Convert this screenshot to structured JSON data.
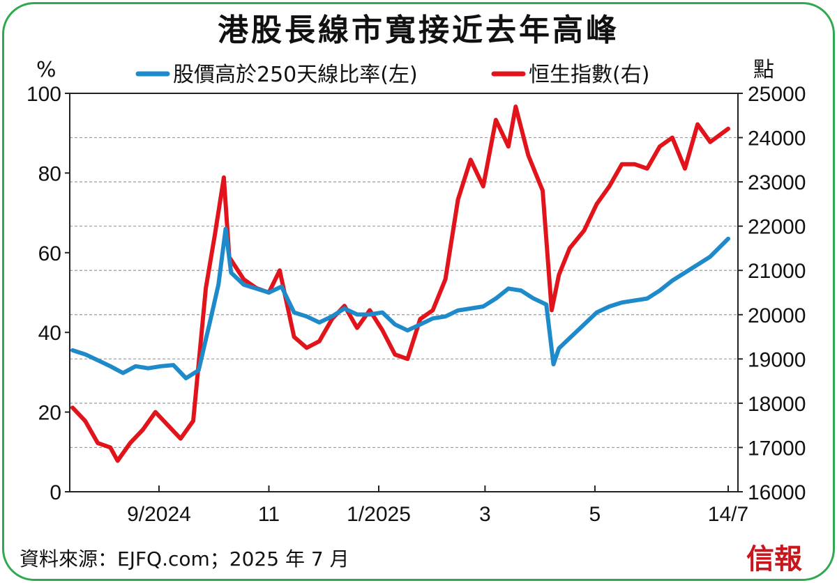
{
  "title": "港股長線市寬接近去年高峰",
  "left_unit": "%",
  "right_unit": "點",
  "source": "資料來源：EJFQ.com；2025 年 7 月",
  "logo": "信報",
  "colors": {
    "frame": "#2fa84f",
    "breadth": "#1f8ac9",
    "hsi": "#e1141b",
    "grid": "#9a9a9a"
  },
  "chart_data": {
    "type": "line",
    "title": "港股長線市寬接近去年高峰",
    "xlabel": "",
    "ylabel_left": "%",
    "ylabel_right": "點",
    "grid": true,
    "legend_position": "top",
    "x_range": [
      "2024-07-15",
      "2025-07-14"
    ],
    "x_ticks": [
      {
        "date": "2024-09-01",
        "label": "9/2024"
      },
      {
        "date": "2024-11-01",
        "label": "11"
      },
      {
        "date": "2025-01-01",
        "label": "1/2025"
      },
      {
        "date": "2025-03-01",
        "label": "3"
      },
      {
        "date": "2025-05-01",
        "label": "5"
      },
      {
        "date": "2025-07-14",
        "label": "14/7"
      }
    ],
    "y_left": {
      "range": [
        0,
        100
      ],
      "ticks": [
        0,
        20,
        40,
        60,
        80,
        100
      ]
    },
    "y_right": {
      "range": [
        16000,
        25000
      ],
      "ticks": [
        16000,
        17000,
        18000,
        19000,
        20000,
        21000,
        22000,
        23000,
        24000,
        25000
      ]
    },
    "series": [
      {
        "name": "股價高於250天線比率(左)",
        "axis": "left",
        "points": [
          [
            "2024-07-15",
            35.5
          ],
          [
            "2024-07-22",
            34.5
          ],
          [
            "2024-07-29",
            33.0
          ],
          [
            "2024-08-05",
            31.5
          ],
          [
            "2024-08-12",
            29.8
          ],
          [
            "2024-08-19",
            31.5
          ],
          [
            "2024-08-26",
            31.0
          ],
          [
            "2024-09-02",
            31.5
          ],
          [
            "2024-09-09",
            31.8
          ],
          [
            "2024-09-16",
            28.5
          ],
          [
            "2024-09-23",
            30.5
          ],
          [
            "2024-09-30",
            44.0
          ],
          [
            "2024-10-04",
            52.0
          ],
          [
            "2024-10-08",
            66.0
          ],
          [
            "2024-10-11",
            55.0
          ],
          [
            "2024-10-18",
            52.0
          ],
          [
            "2024-10-25",
            51.0
          ],
          [
            "2024-11-01",
            50.0
          ],
          [
            "2024-11-08",
            51.5
          ],
          [
            "2024-11-15",
            45.0
          ],
          [
            "2024-11-22",
            44.0
          ],
          [
            "2024-11-29",
            42.5
          ],
          [
            "2024-12-06",
            44.0
          ],
          [
            "2024-12-13",
            46.0
          ],
          [
            "2024-12-20",
            44.5
          ],
          [
            "2024-12-27",
            44.5
          ],
          [
            "2025-01-03",
            45.0
          ],
          [
            "2025-01-10",
            42.0
          ],
          [
            "2025-01-17",
            40.5
          ],
          [
            "2025-01-24",
            42.0
          ],
          [
            "2025-01-31",
            43.5
          ],
          [
            "2025-02-07",
            44.0
          ],
          [
            "2025-02-14",
            45.5
          ],
          [
            "2025-02-21",
            46.0
          ],
          [
            "2025-02-28",
            46.5
          ],
          [
            "2025-03-07",
            48.5
          ],
          [
            "2025-03-14",
            51.0
          ],
          [
            "2025-03-21",
            50.5
          ],
          [
            "2025-03-28",
            48.5
          ],
          [
            "2025-04-04",
            47.0
          ],
          [
            "2025-04-08",
            32.0
          ],
          [
            "2025-04-11",
            36.0
          ],
          [
            "2025-04-18",
            39.0
          ],
          [
            "2025-04-25",
            42.0
          ],
          [
            "2025-05-02",
            45.0
          ],
          [
            "2025-05-09",
            46.5
          ],
          [
            "2025-05-16",
            47.5
          ],
          [
            "2025-05-23",
            48.0
          ],
          [
            "2025-05-30",
            48.5
          ],
          [
            "2025-06-06",
            50.5
          ],
          [
            "2025-06-13",
            53.0
          ],
          [
            "2025-06-20",
            55.0
          ],
          [
            "2025-06-27",
            57.0
          ],
          [
            "2025-07-04",
            59.0
          ],
          [
            "2025-07-14",
            63.5
          ]
        ]
      },
      {
        "name": "恒生指數(右)",
        "axis": "right",
        "points": [
          [
            "2024-07-15",
            17900
          ],
          [
            "2024-07-22",
            17600
          ],
          [
            "2024-07-29",
            17100
          ],
          [
            "2024-08-05",
            17000
          ],
          [
            "2024-08-09",
            16700
          ],
          [
            "2024-08-16",
            17100
          ],
          [
            "2024-08-23",
            17400
          ],
          [
            "2024-08-30",
            17800
          ],
          [
            "2024-09-06",
            17500
          ],
          [
            "2024-09-13",
            17200
          ],
          [
            "2024-09-20",
            17600
          ],
          [
            "2024-09-27",
            20600
          ],
          [
            "2024-10-02",
            21800
          ],
          [
            "2024-10-07",
            23100
          ],
          [
            "2024-10-10",
            21300
          ],
          [
            "2024-10-18",
            20800
          ],
          [
            "2024-10-25",
            20600
          ],
          [
            "2024-11-01",
            20500
          ],
          [
            "2024-11-07",
            21000
          ],
          [
            "2024-11-15",
            19500
          ],
          [
            "2024-11-22",
            19250
          ],
          [
            "2024-11-29",
            19400
          ],
          [
            "2024-12-06",
            19900
          ],
          [
            "2024-12-13",
            20200
          ],
          [
            "2024-12-20",
            19700
          ],
          [
            "2024-12-27",
            20100
          ],
          [
            "2025-01-03",
            19650
          ],
          [
            "2025-01-10",
            19100
          ],
          [
            "2025-01-17",
            19000
          ],
          [
            "2025-01-24",
            19900
          ],
          [
            "2025-01-31",
            20100
          ],
          [
            "2025-02-07",
            20800
          ],
          [
            "2025-02-14",
            22600
          ],
          [
            "2025-02-21",
            23500
          ],
          [
            "2025-02-28",
            22900
          ],
          [
            "2025-03-07",
            24400
          ],
          [
            "2025-03-14",
            23800
          ],
          [
            "2025-03-18",
            24700
          ],
          [
            "2025-03-25",
            23600
          ],
          [
            "2025-04-02",
            22800
          ],
          [
            "2025-04-07",
            20100
          ],
          [
            "2025-04-11",
            20900
          ],
          [
            "2025-04-17",
            21500
          ],
          [
            "2025-04-25",
            21900
          ],
          [
            "2025-05-02",
            22500
          ],
          [
            "2025-05-09",
            22900
          ],
          [
            "2025-05-16",
            23400
          ],
          [
            "2025-05-23",
            23400
          ],
          [
            "2025-05-30",
            23300
          ],
          [
            "2025-06-06",
            23800
          ],
          [
            "2025-06-13",
            24000
          ],
          [
            "2025-06-20",
            23300
          ],
          [
            "2025-06-27",
            24300
          ],
          [
            "2025-07-04",
            23900
          ],
          [
            "2025-07-14",
            24200
          ]
        ]
      }
    ]
  }
}
